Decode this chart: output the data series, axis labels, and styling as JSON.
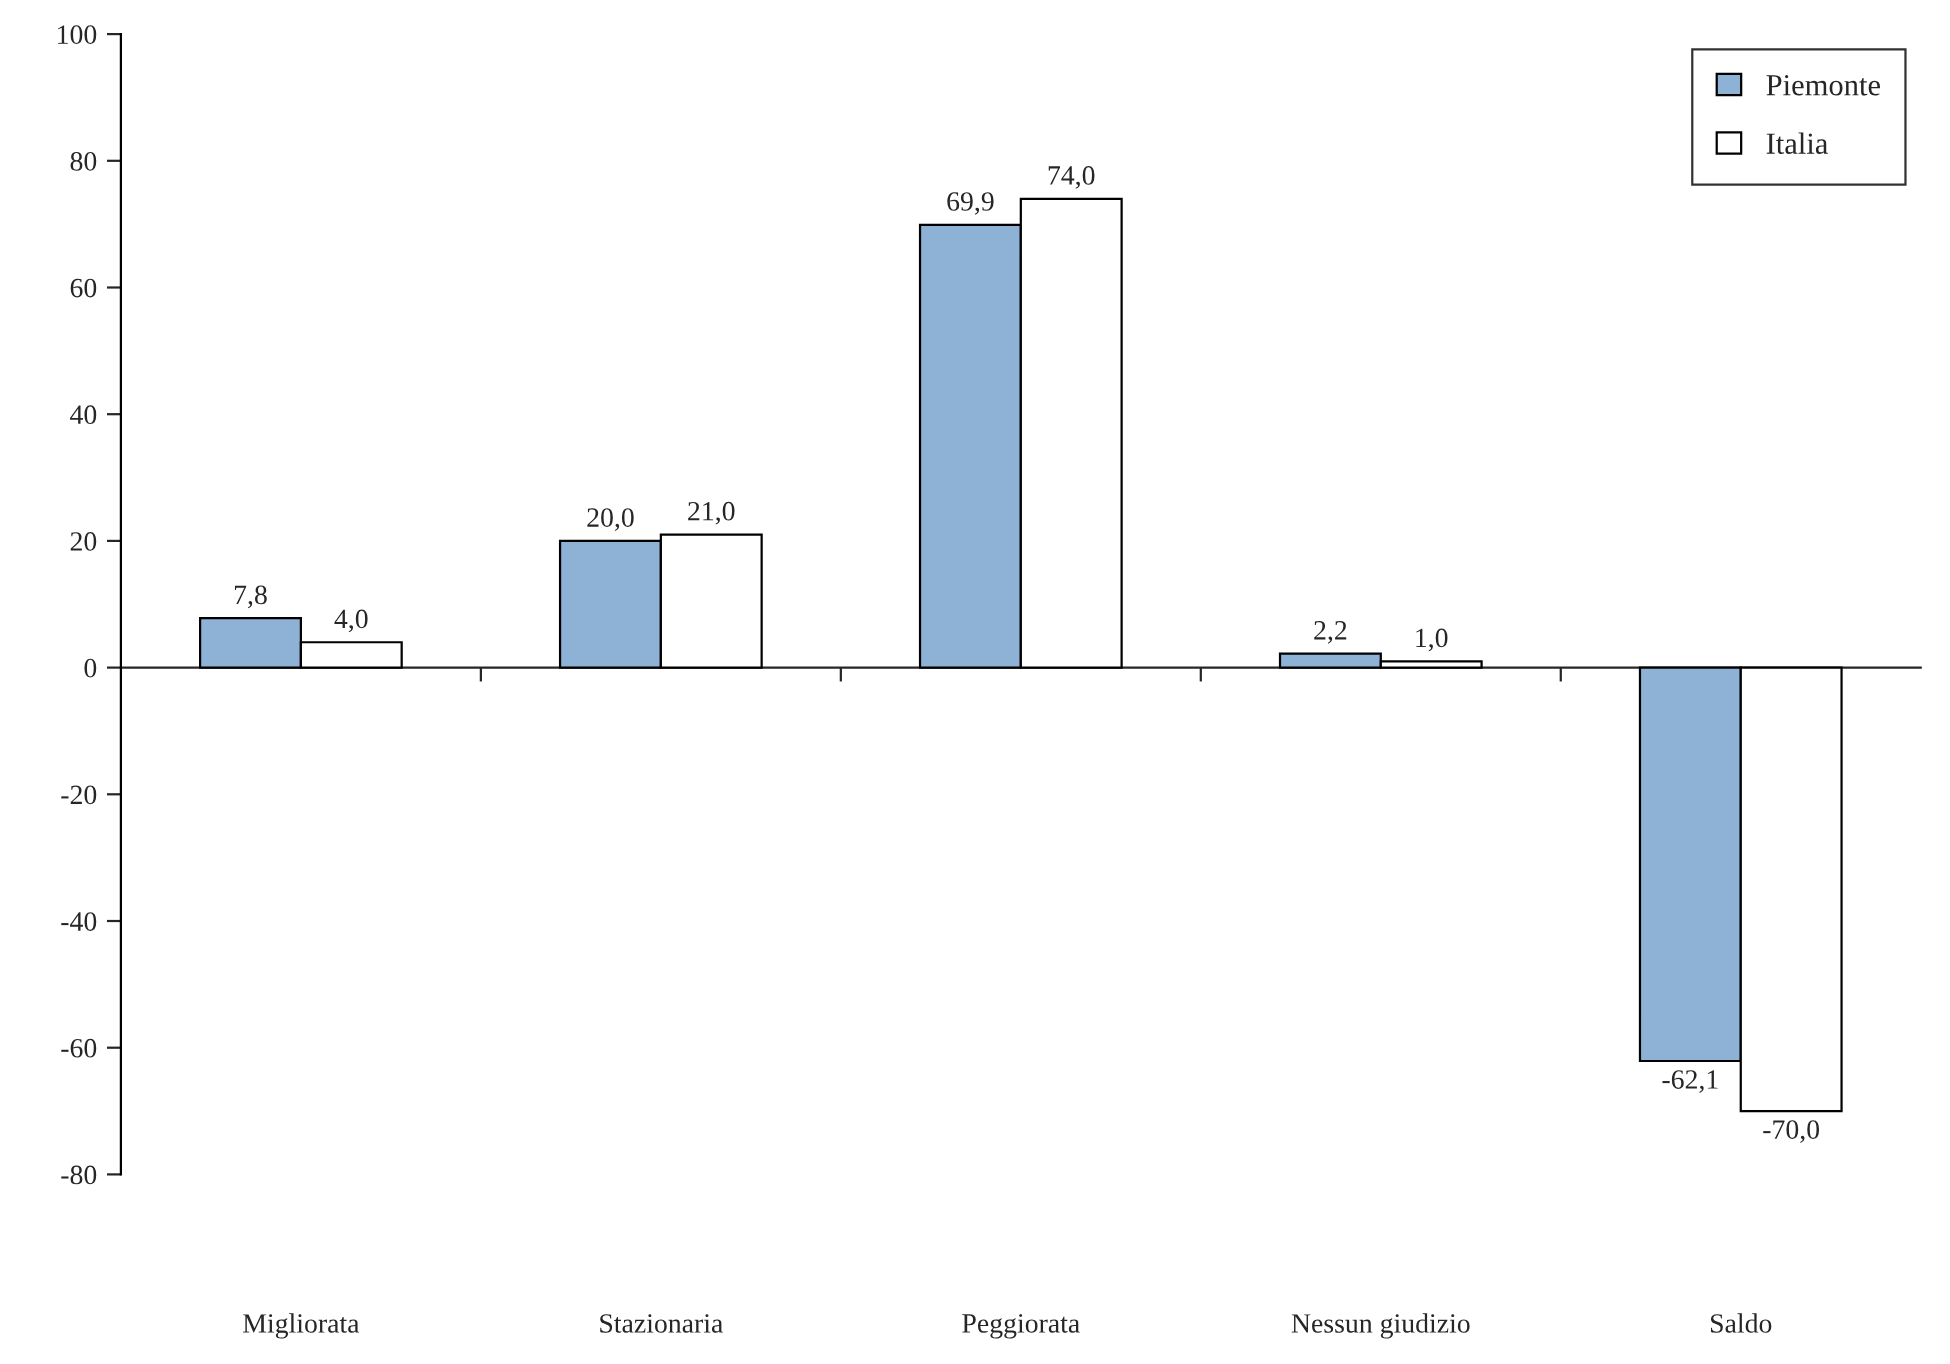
{
  "chart_data": {
    "type": "bar",
    "categories": [
      "Migliorata",
      "Stazionaria",
      "Peggiorata",
      "Nessun giudizio",
      "Saldo"
    ],
    "series": [
      {
        "name": "Piemonte",
        "color": "#8eb1d6",
        "values": [
          7.8,
          20.0,
          69.9,
          2.2,
          -62.1
        ],
        "value_labels": [
          "7,8",
          "20,0",
          "69,9",
          "2,2",
          "-62,1"
        ]
      },
      {
        "name": "Italia",
        "color": "#ffffff",
        "values": [
          4.0,
          21.0,
          74.0,
          1.0,
          -70.0
        ],
        "value_labels": [
          "4,0",
          "21,0",
          "74,0",
          "1,0",
          "-70,0"
        ]
      }
    ],
    "ylim": [
      -80,
      100
    ],
    "yticks": [
      -80,
      -60,
      -40,
      -20,
      0,
      20,
      40,
      60,
      80,
      100
    ],
    "legend": "top right"
  }
}
